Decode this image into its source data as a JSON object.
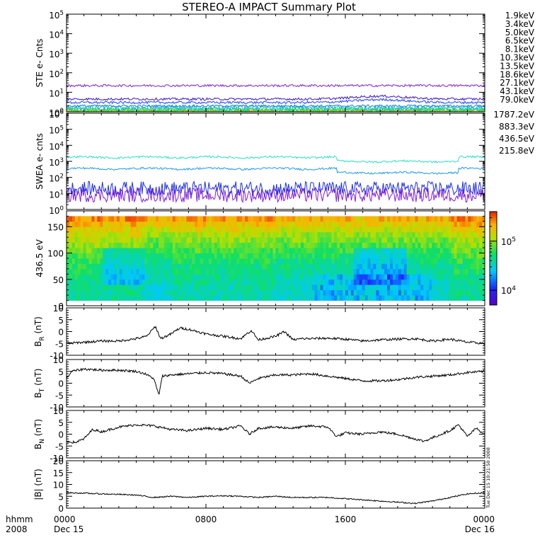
{
  "title": "STEREO-A IMPACT Summary Plot",
  "footer": {
    "left_label": "hhmm",
    "left_year": "2008",
    "x_ticks": [
      {
        "t": 0,
        "label": "0000",
        "sub": "Dec 15"
      },
      {
        "t": 8,
        "label": "0800",
        "sub": ""
      },
      {
        "t": 16,
        "label": "1600",
        "sub": ""
      },
      {
        "t": 24,
        "label": "0000",
        "sub": "Dec 16"
      }
    ]
  },
  "side_stamp": "Tue Dec 15 10:21:50 2008",
  "colorbar": {
    "ticks": [
      {
        "value": 10000,
        "label": "10",
        "exp": "4"
      },
      {
        "value": 100000,
        "label": "10",
        "exp": "5"
      }
    ],
    "range": [
      5000,
      400000
    ]
  },
  "chart_data": [
    {
      "id": "ste",
      "type": "line",
      "ylabel": "STE e- Cnts",
      "yscale": "log",
      "ylim": [
        1,
        100000
      ],
      "y_ticks": [
        "10^0",
        "10^1",
        "10^2",
        "10^3",
        "10^4",
        "10^5"
      ],
      "xlim": [
        0,
        24
      ],
      "series": [
        {
          "name": "1.9keV",
          "color": "#7f1fd6",
          "level": 22
        },
        {
          "name": "3.4keV",
          "color": "#3a12c8",
          "level": 4.5
        },
        {
          "name": "5.0keV",
          "color": "#1b40ff",
          "level": 3.0
        },
        {
          "name": "6.5keV",
          "color": "#0e7ef0",
          "level": 2.0
        },
        {
          "name": "8.1keV",
          "color": "#19b7e0",
          "level": 1.6
        },
        {
          "name": "10.3keV",
          "color": "#1ee07a",
          "level": 1.35
        },
        {
          "name": "13.5keV",
          "color": "#2ed22e",
          "level": 1.2
        },
        {
          "name": "18.6keV",
          "color": "#b4dc1c",
          "level": 1.1
        },
        {
          "name": "27.1keV",
          "color": "#e9c31b",
          "level": 1.05
        },
        {
          "name": "43.1keV",
          "color": "#eb8a10",
          "level": 1.02
        },
        {
          "name": "79.0keV",
          "color": "#e0451a",
          "level": 1.0
        }
      ]
    },
    {
      "id": "swea",
      "type": "line",
      "ylabel": "SWEA e- cnts",
      "yscale": "log",
      "ylim": [
        1,
        1000000
      ],
      "y_ticks": [
        "10^0",
        "10^1",
        "10^2",
        "10^3",
        "10^4",
        "10^5",
        "10^6"
      ],
      "xlim": [
        0,
        24
      ],
      "series": [
        {
          "name": "1787.2eV",
          "color": "#7f1fd6",
          "level": 8
        },
        {
          "name": "883.3eV",
          "color": "#1b2ee6",
          "level": 20
        },
        {
          "name": "436.5eV",
          "color": "#1f9ae8",
          "level": 350
        },
        {
          "name": "215.8eV",
          "color": "#29e0c8",
          "level": 1800
        }
      ]
    },
    {
      "id": "pad",
      "type": "heatmap",
      "ylabel": "436.5 eV",
      "ylim": [
        0,
        180
      ],
      "y_ticks": [
        0,
        50,
        100,
        150
      ],
      "xlim": [
        0,
        24
      ],
      "data_range_y": [
        10,
        170
      ]
    },
    {
      "id": "br",
      "type": "line",
      "ylabel": "B_R (nT)",
      "ylim": [
        -10,
        10
      ],
      "y_ticks": [
        -10,
        -5,
        0,
        5,
        10
      ],
      "xlim": [
        0,
        24
      ],
      "x": [
        0,
        1,
        2,
        3,
        4,
        4.6,
        5.1,
        5.4,
        6,
        6.5,
        7,
        7.5,
        8,
        9,
        10,
        10.6,
        11,
        12,
        12.5,
        13,
        13.5,
        14,
        15,
        16,
        17,
        18,
        19,
        20,
        21,
        22,
        23,
        24
      ],
      "y": [
        -5,
        -4.5,
        -4,
        -4,
        -3,
        -2,
        2.2,
        -3,
        -1,
        1.5,
        1,
        0,
        -1,
        -2,
        -3,
        0.5,
        -3.5,
        -2,
        0,
        -3.5,
        -3,
        -3,
        -2.8,
        -3.2,
        -4,
        -3.5,
        -3.2,
        -3,
        -4,
        -3.2,
        -4.5,
        -5
      ]
    },
    {
      "id": "bt",
      "type": "line",
      "ylabel": "B_T (nT)",
      "ylim": [
        -10,
        10
      ],
      "y_ticks": [
        -10,
        -5,
        0,
        5,
        10
      ],
      "xlim": [
        0,
        24
      ],
      "x": [
        0,
        0.3,
        1,
        2,
        3,
        4,
        4.5,
        5,
        5.3,
        5.5,
        6,
        7,
        8,
        9,
        10,
        10.5,
        11,
        12,
        13,
        14,
        15,
        16,
        17,
        18,
        19,
        20,
        21,
        22,
        23,
        24
      ],
      "y": [
        2,
        5,
        6,
        5.5,
        5.5,
        5,
        4,
        2,
        -5,
        3,
        3.5,
        4,
        4.5,
        4,
        3,
        0,
        2,
        3.5,
        3.5,
        4,
        3,
        2,
        1,
        1,
        1.5,
        2.5,
        3,
        3.5,
        4.5,
        5
      ]
    },
    {
      "id": "bn",
      "type": "line",
      "ylabel": "B_N (nT)",
      "ylim": [
        -10,
        10
      ],
      "y_ticks": [
        -10,
        -5,
        0,
        5,
        10
      ],
      "xlim": [
        0,
        24
      ],
      "x": [
        0,
        0.5,
        1,
        1.5,
        2,
        3,
        4,
        5,
        6,
        7,
        8,
        9,
        10,
        10.5,
        11,
        12,
        13,
        14,
        15,
        15.5,
        16,
        17,
        18,
        19,
        20,
        20.5,
        21,
        22,
        22.5,
        23,
        23.5,
        24
      ],
      "y": [
        -3,
        -3.5,
        -2,
        2,
        1,
        3,
        4,
        3.5,
        2,
        1.5,
        2.5,
        2,
        3.5,
        0,
        2.5,
        3,
        2.5,
        3.5,
        3,
        -1,
        0.5,
        0,
        1,
        0,
        -2,
        -3,
        -1.5,
        1.5,
        4,
        -1,
        2.5,
        0
      ]
    },
    {
      "id": "bmag",
      "type": "line",
      "ylabel": "|B| (nT)",
      "ylim": [
        0,
        20
      ],
      "y_ticks": [
        0,
        5,
        10,
        15,
        20
      ],
      "xlim": [
        0,
        24
      ],
      "x": [
        0,
        1,
        2,
        3,
        4,
        5,
        6,
        7,
        8,
        9,
        10,
        11,
        12,
        13,
        14,
        15,
        16,
        17,
        18,
        19,
        20,
        21,
        22,
        23,
        24
      ],
      "y": [
        6.5,
        6.3,
        6,
        5.8,
        5.5,
        4.5,
        5,
        4.5,
        5,
        5.2,
        5,
        4.5,
        5,
        4.5,
        4.5,
        4.5,
        4,
        3.5,
        3,
        2.5,
        2,
        3,
        4.5,
        6,
        6.5
      ]
    }
  ]
}
